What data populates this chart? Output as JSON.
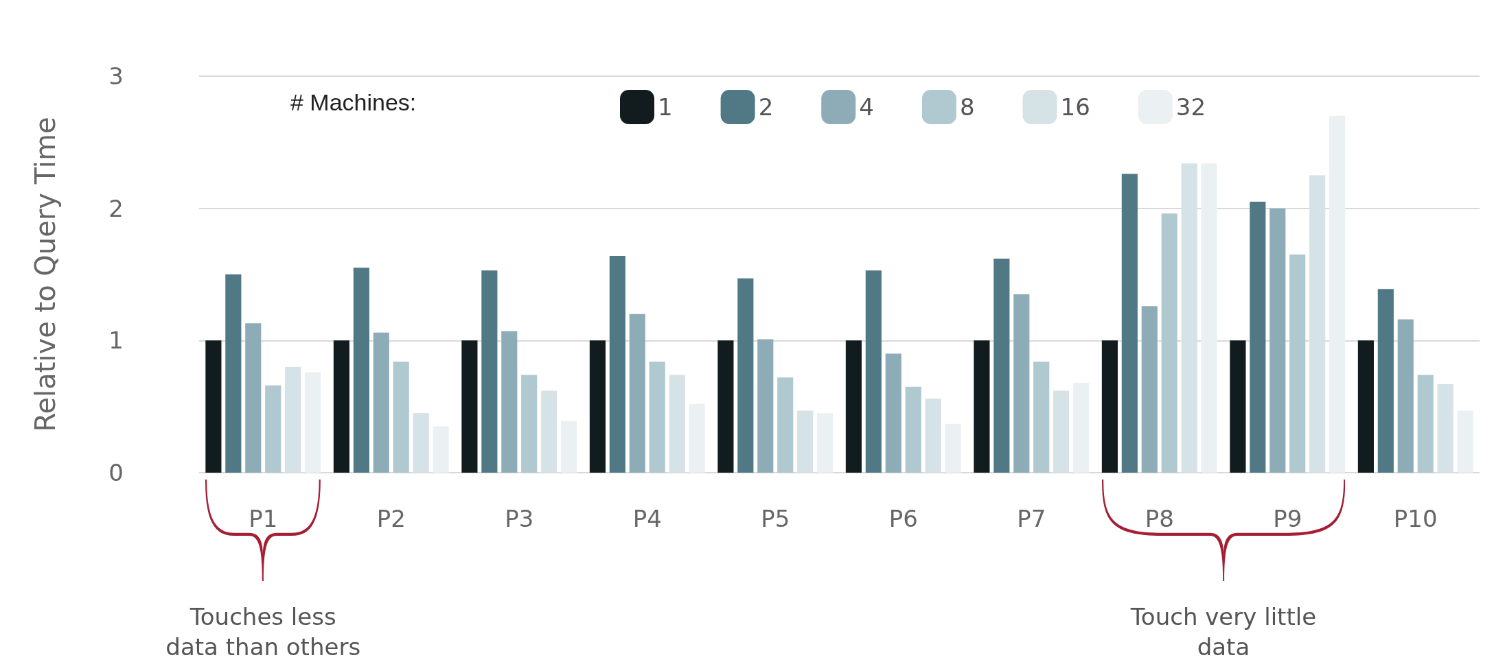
{
  "chart_data": {
    "type": "bar",
    "ylabel": "Relative to Query Time",
    "legend_title": "# Machines:",
    "legend": "top",
    "grid": "y",
    "categories": [
      "P1",
      "P2",
      "P3",
      "P4",
      "P5",
      "P6",
      "P7",
      "P8",
      "P9",
      "P10"
    ],
    "ylim": [
      0,
      3
    ],
    "yticks": [
      0,
      1,
      2,
      3
    ],
    "series": [
      {
        "name": "1",
        "color": "#121c1e",
        "values": [
          1,
          1,
          1,
          1,
          1,
          1,
          1,
          1,
          1,
          1
        ]
      },
      {
        "name": "2",
        "color": "#507885",
        "values": [
          1.5,
          1.55,
          1.53,
          1.64,
          1.47,
          1.53,
          1.62,
          2.26,
          2.05,
          1.39
        ]
      },
      {
        "name": "4",
        "color": "#8eacb7",
        "values": [
          1.13,
          1.06,
          1.07,
          1.2,
          1.01,
          0.9,
          1.35,
          1.26,
          2.0,
          1.16
        ]
      },
      {
        "name": "8",
        "color": "#b0c8cf",
        "values": [
          0.66,
          0.84,
          0.74,
          0.84,
          0.72,
          0.65,
          0.84,
          1.96,
          1.65,
          0.74
        ]
      },
      {
        "name": "16",
        "color": "#d5e2e6",
        "values": [
          0.8,
          0.45,
          0.62,
          0.74,
          0.47,
          0.56,
          0.62,
          2.34,
          2.25,
          0.67
        ]
      },
      {
        "name": "32",
        "color": "#ebf0f2",
        "values": [
          0.76,
          0.35,
          0.39,
          0.52,
          0.45,
          0.37,
          0.68,
          2.34,
          2.7,
          0.47
        ]
      }
    ],
    "annotations": [
      "Touches less data than others",
      "Touch very little data"
    ]
  }
}
